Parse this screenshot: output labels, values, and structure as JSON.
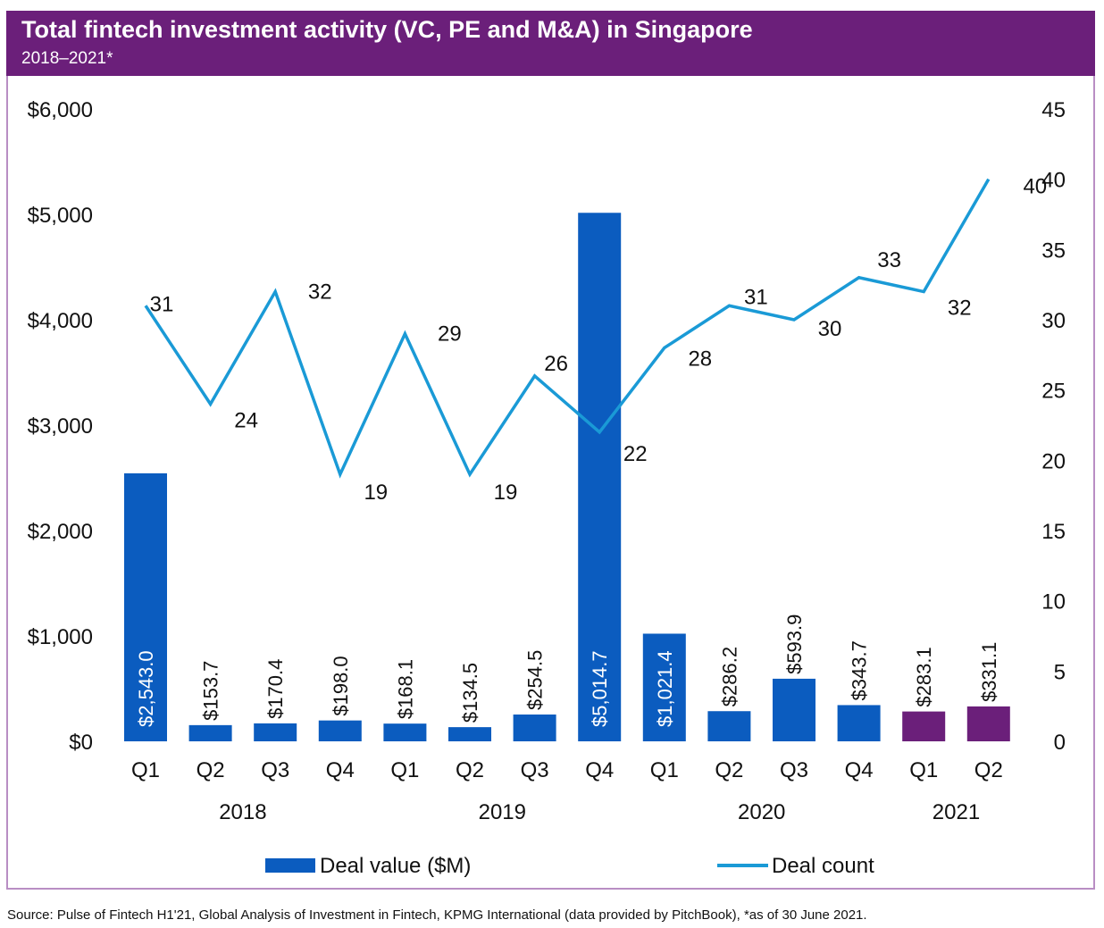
{
  "header": {
    "title": "Total fintech investment activity (VC, PE and M&A) in Singapore",
    "subtitle": "2018–2021*"
  },
  "source": "Source: Pulse of Fintech H1'21, Global Analysis of Investment in Fintech, KPMG International (data provided by PitchBook), *as of 30 June 2021.",
  "colors": {
    "header_bg": "#6b1f7a",
    "bar_blue": "#0b5cbf",
    "bar_purple": "#6b1f7a",
    "line": "#1a9ad6",
    "frame": "#b98ec4"
  },
  "chart_data": {
    "type": "bar",
    "title": "Total fintech investment activity (VC, PE and M&A) in Singapore",
    "subtitle": "2018–2021*",
    "categories": [
      "Q1",
      "Q2",
      "Q3",
      "Q4",
      "Q1",
      "Q2",
      "Q3",
      "Q4",
      "Q1",
      "Q2",
      "Q3",
      "Q4",
      "Q1",
      "Q2"
    ],
    "groups": [
      {
        "label": "2018",
        "span": [
          0,
          3
        ]
      },
      {
        "label": "2019",
        "span": [
          4,
          7
        ]
      },
      {
        "label": "2020",
        "span": [
          8,
          11
        ]
      },
      {
        "label": "2021",
        "span": [
          12,
          13
        ]
      }
    ],
    "series": [
      {
        "name": "Deal value ($M)",
        "type": "bar",
        "axis": "left",
        "values": [
          2543.0,
          153.7,
          170.4,
          198.0,
          168.1,
          134.5,
          254.5,
          5014.7,
          1021.4,
          286.2,
          593.9,
          343.7,
          283.1,
          331.1
        ],
        "labels": [
          "$2,543.0",
          "$153.7",
          "$170.4",
          "$198.0",
          "$168.1",
          "$134.5",
          "$254.5",
          "$5,014.7",
          "$1,021.4",
          "$286.2",
          "$593.9",
          "$343.7",
          "$283.1",
          "$331.1"
        ],
        "highlight_from_index": 12
      },
      {
        "name": "Deal count",
        "type": "line",
        "axis": "right",
        "values": [
          31,
          24,
          32,
          19,
          29,
          19,
          26,
          22,
          28,
          31,
          30,
          33,
          32,
          40
        ]
      }
    ],
    "y_left": {
      "ylim": [
        0,
        6000
      ],
      "ticks": [
        "$0",
        "$1,000",
        "$2,000",
        "$3,000",
        "$4,000",
        "$5,000",
        "$6,000"
      ]
    },
    "y_right": {
      "ylim": [
        0,
        45
      ],
      "ticks": [
        "0",
        "5",
        "10",
        "15",
        "20",
        "25",
        "30",
        "35",
        "40",
        "45"
      ]
    },
    "xlabel": "",
    "ylabel": "",
    "grid": false,
    "legend": {
      "position": "bottom",
      "items": [
        "Deal value ($M)",
        "Deal count"
      ]
    }
  }
}
